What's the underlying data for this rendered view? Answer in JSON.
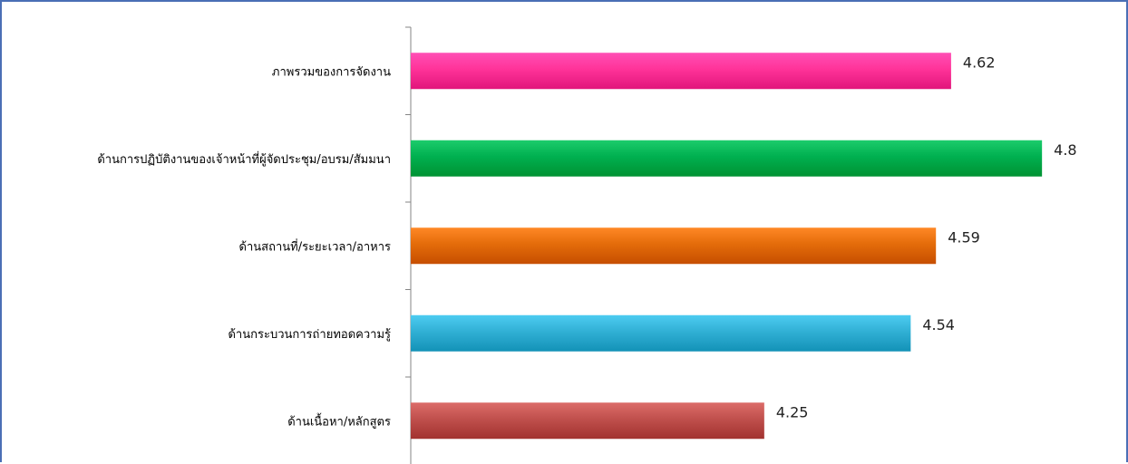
{
  "chart_data": {
    "type": "bar",
    "orientation": "horizontal",
    "categories": [
      "ภาพรวมของการจัดงาน",
      "ด้านการปฏิบัติงานของเจ้าหน้าที่ผู้จัดประชุม/อบรม/สัมมนา",
      "ด้านสถานที่/ระยะเวลา/อาหาร",
      "ด้านกระบวนการถ่ายทอดความรู้",
      "ด้านเนื้อหา/หลักสูตร"
    ],
    "values": [
      4.62,
      4.8,
      4.59,
      4.54,
      4.25
    ],
    "value_labels": [
      "4.62",
      "4.8",
      "4.59",
      "4.54",
      "4.25"
    ],
    "colors": [
      "#ff3399",
      "#00b050",
      "#e46c0a",
      "#31b0d5",
      "#c0504d"
    ],
    "xlim": [
      3.55,
      4.85
    ],
    "grid": false,
    "legend": "none"
  }
}
